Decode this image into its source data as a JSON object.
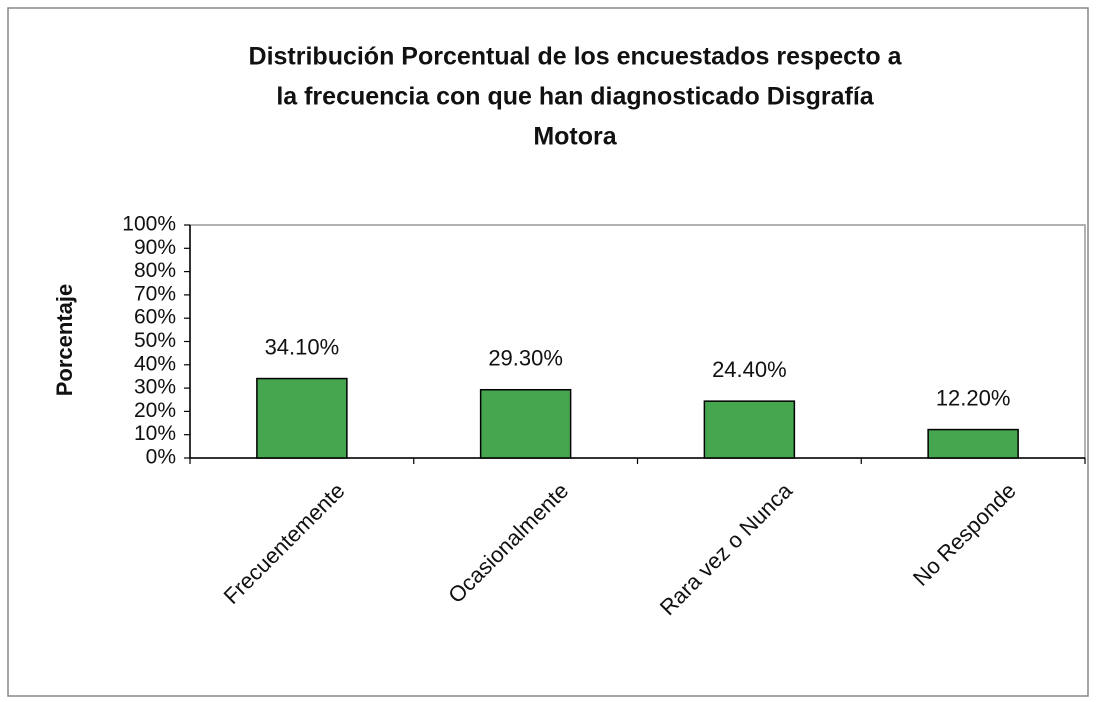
{
  "chart_data": {
    "type": "bar",
    "title": [
      "Distribución Porcentual de los encuestados respecto a",
      "la frecuencia con que han diagnosticado  Disgrafía",
      "Motora"
    ],
    "y_label": "Porcentaje",
    "categories": [
      "Frecuentemente",
      "Ocasionalmente",
      "Rara vez o Nunca",
      "No Responde"
    ],
    "values": [
      34.1,
      29.3,
      24.4,
      12.2
    ],
    "value_labels": [
      "34.10%",
      "29.30%",
      "24.40%",
      "12.20%"
    ],
    "color": "#45a64f",
    "ylim": [
      0,
      100
    ],
    "yticks": [
      {
        "value": 0,
        "label": "0%"
      },
      {
        "value": 10,
        "label": "10%"
      },
      {
        "value": 20,
        "label": "20%"
      },
      {
        "value": 30,
        "label": "30%"
      },
      {
        "value": 40,
        "label": "40%"
      },
      {
        "value": 50,
        "label": "50%"
      },
      {
        "value": 60,
        "label": "60%"
      },
      {
        "value": 70,
        "label": "70%"
      },
      {
        "value": 80,
        "label": "80%"
      },
      {
        "value": 90,
        "label": "90%"
      },
      {
        "value": 100,
        "label": "100%"
      }
    ],
    "grid": false
  }
}
